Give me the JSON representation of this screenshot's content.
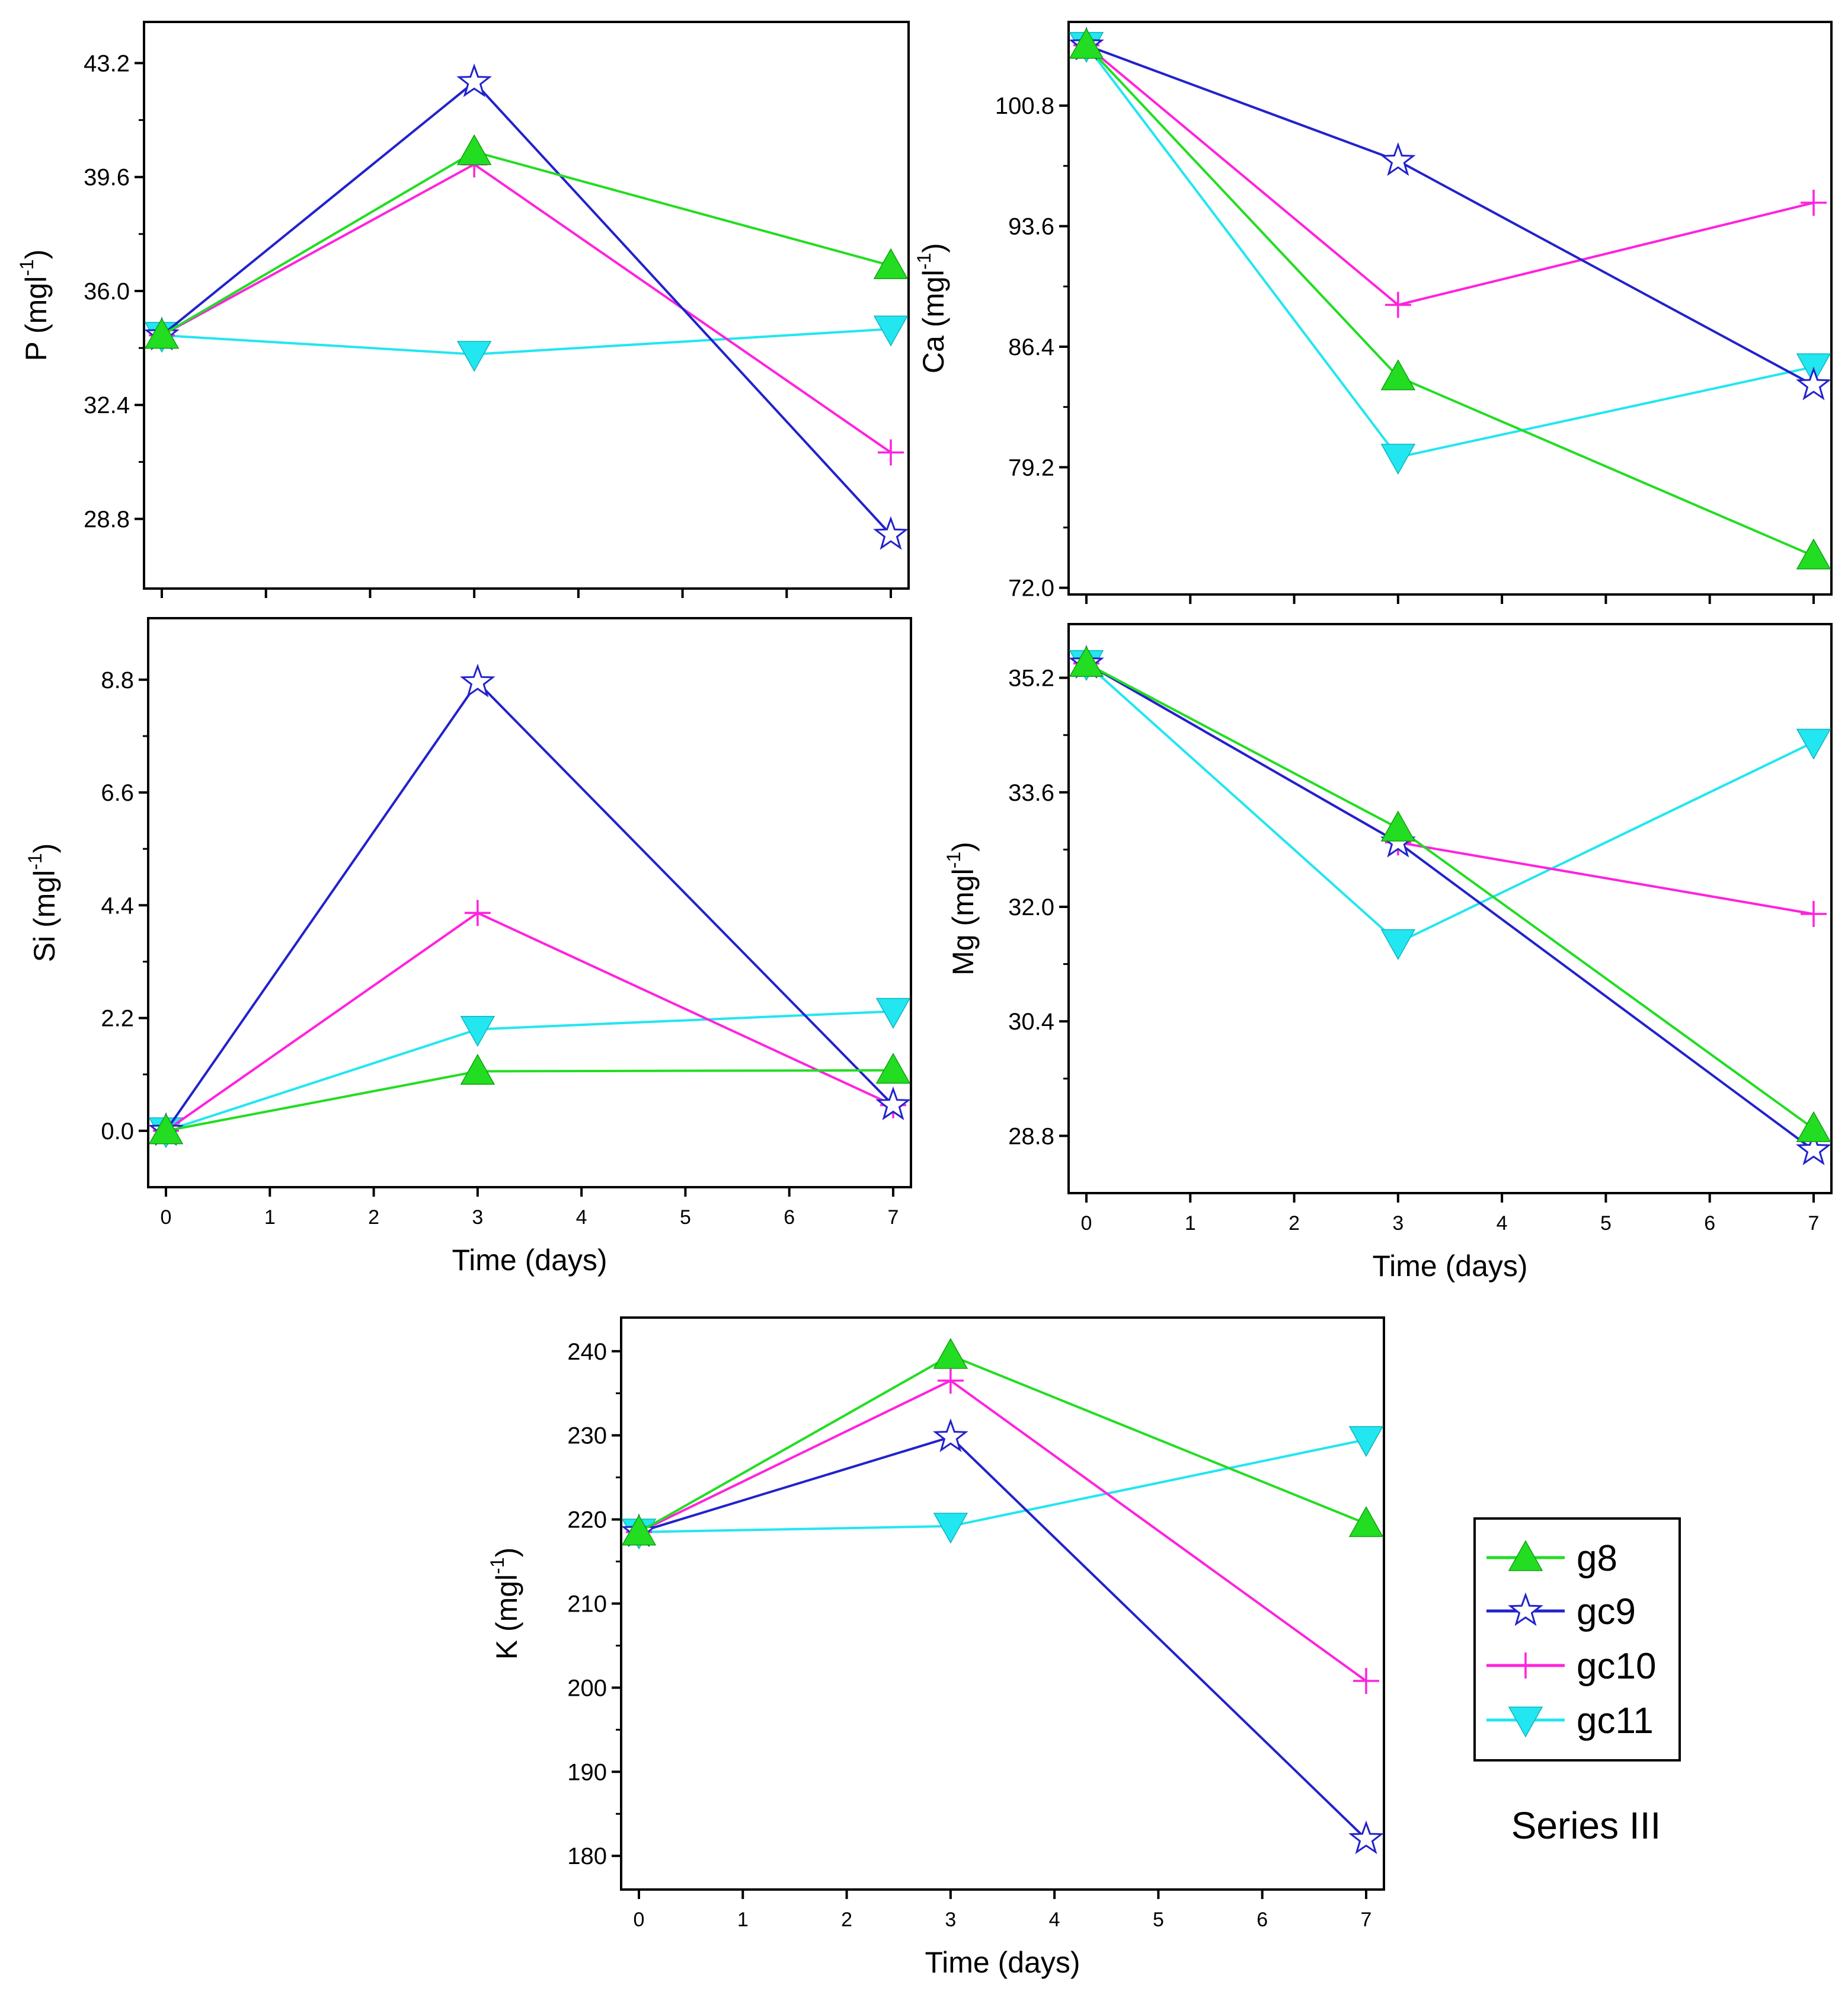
{
  "series_style": {
    "g8": {
      "color": "#22dd22",
      "marker": "triangle-up-filled"
    },
    "gc9": {
      "color": "#2222cc",
      "marker": "star-open"
    },
    "gc10": {
      "color": "#ff22dd",
      "marker": "plus"
    },
    "gc11": {
      "color": "#22e6f0",
      "marker": "triangle-down-filled"
    }
  },
  "legend": {
    "entries": [
      "g8",
      "gc9",
      "gc10",
      "gc11"
    ],
    "series_label": "Series III"
  },
  "chart_data": [
    {
      "id": "P",
      "type": "line",
      "element": "P",
      "ylabel": "(mgl",
      "ylabel_sup": "-1",
      "ylabel_close": ")",
      "xlabel": "",
      "x": [
        0,
        3,
        7
      ],
      "xlim": [
        0,
        7
      ],
      "ylim": [
        26.6,
        44.5
      ],
      "xticks": [],
      "yticks": [
        "28.8",
        "32.4",
        "36.0",
        "39.6",
        "43.2"
      ],
      "series": [
        {
          "name": "g8",
          "values": [
            34.6,
            40.4,
            36.8
          ]
        },
        {
          "name": "gc9",
          "values": [
            34.6,
            42.6,
            28.3
          ]
        },
        {
          "name": "gc10",
          "values": [
            34.6,
            40.0,
            30.9
          ]
        },
        {
          "name": "gc11",
          "values": [
            34.6,
            34.0,
            34.8
          ]
        }
      ]
    },
    {
      "id": "Ca",
      "type": "line",
      "element": "Ca",
      "ylabel": "(mgl",
      "ylabel_sup": "-1",
      "ylabel_close": ")",
      "xlabel": "",
      "x": [
        0,
        3,
        7
      ],
      "xlim": [
        0,
        7
      ],
      "ylim": [
        71.6,
        105.8
      ],
      "xticks": [],
      "yticks": [
        "72.0",
        "79.2",
        "86.4",
        "93.6",
        "100.8"
      ],
      "series": [
        {
          "name": "g8",
          "values": [
            104.4,
            84.6,
            73.9
          ]
        },
        {
          "name": "gc9",
          "values": [
            104.4,
            97.5,
            84.1
          ]
        },
        {
          "name": "gc10",
          "values": [
            104.4,
            88.9,
            95.0
          ]
        },
        {
          "name": "gc11",
          "values": [
            104.4,
            79.8,
            85.2
          ]
        }
      ]
    },
    {
      "id": "Si",
      "type": "line",
      "element": "Si",
      "ylabel": "(mgl",
      "ylabel_sup": "-1",
      "ylabel_close": ")",
      "xlabel": "Time (days)",
      "x": [
        0,
        3,
        7
      ],
      "xlim": [
        0,
        7
      ],
      "ylim": [
        -1.1,
        10.0
      ],
      "xticks": [
        "0",
        "1",
        "2",
        "3",
        "4",
        "5",
        "6",
        "7"
      ],
      "yticks": [
        "0.0",
        "2.2",
        "4.4",
        "6.6",
        "8.8"
      ],
      "series": [
        {
          "name": "g8",
          "values": [
            0.0,
            1.16,
            1.18
          ]
        },
        {
          "name": "gc9",
          "values": [
            0.0,
            8.75,
            0.5
          ]
        },
        {
          "name": "gc10",
          "values": [
            0.0,
            4.25,
            0.5
          ]
        },
        {
          "name": "gc11",
          "values": [
            0.0,
            1.98,
            2.33
          ]
        }
      ]
    },
    {
      "id": "Mg",
      "type": "line",
      "element": "Mg",
      "ylabel": "(mgl",
      "ylabel_sup": "-1",
      "ylabel_close": ")",
      "xlabel": "Time (days)",
      "x": [
        0,
        3,
        7
      ],
      "xlim": [
        0,
        7
      ],
      "ylim": [
        28.0,
        35.95
      ],
      "xticks": [
        "0",
        "1",
        "2",
        "3",
        "4",
        "5",
        "6",
        "7"
      ],
      "yticks": [
        "28.8",
        "30.4",
        "32.0",
        "33.6",
        "35.2"
      ],
      "series": [
        {
          "name": "g8",
          "values": [
            35.4,
            33.1,
            28.9
          ]
        },
        {
          "name": "gc9",
          "values": [
            35.4,
            32.9,
            28.6
          ]
        },
        {
          "name": "gc10",
          "values": [
            35.4,
            32.9,
            31.9
          ]
        },
        {
          "name": "gc11",
          "values": [
            35.4,
            31.5,
            34.3
          ]
        }
      ]
    },
    {
      "id": "K",
      "type": "line",
      "element": "K",
      "ylabel": "(mgl",
      "ylabel_sup": "-1",
      "ylabel_close": ")",
      "xlabel": "Time (days)",
      "x": [
        0,
        3,
        7
      ],
      "xlim": [
        0,
        7
      ],
      "ylim": [
        176,
        244
      ],
      "xticks": [
        "0",
        "1",
        "2",
        "3",
        "4",
        "5",
        "6",
        "7"
      ],
      "yticks": [
        "180",
        "190",
        "200",
        "210",
        "220",
        "230",
        "240"
      ],
      "series": [
        {
          "name": "g8",
          "values": [
            218.5,
            239.5,
            219.5
          ]
        },
        {
          "name": "gc9",
          "values": [
            218.5,
            229.8,
            182.0
          ]
        },
        {
          "name": "gc10",
          "values": [
            218.5,
            236.5,
            200.8
          ]
        },
        {
          "name": "gc11",
          "values": [
            218.5,
            219.2,
            229.5
          ]
        }
      ]
    }
  ]
}
